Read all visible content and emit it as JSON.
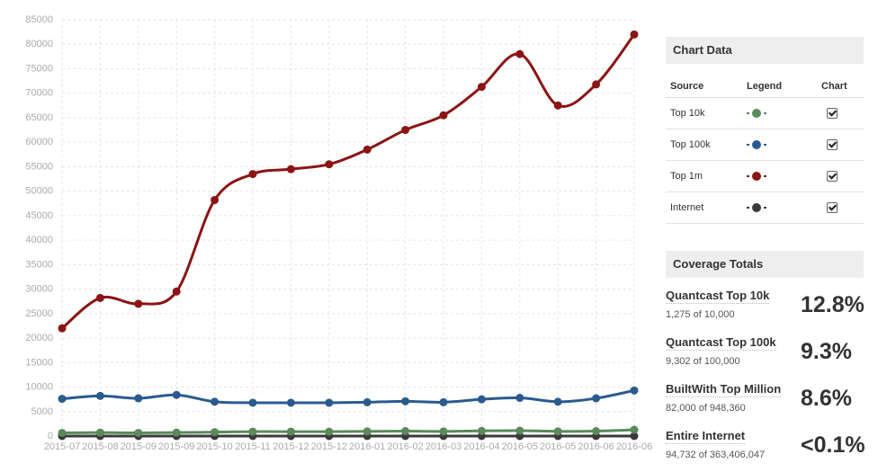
{
  "chart_data": {
    "type": "line",
    "title": "",
    "xlabel": "",
    "ylabel": "",
    "ylim": [
      0,
      85000
    ],
    "yticks": [
      0,
      5000,
      10000,
      15000,
      20000,
      25000,
      30000,
      35000,
      40000,
      45000,
      50000,
      55000,
      60000,
      65000,
      70000,
      75000,
      80000,
      85000
    ],
    "x_tick_labels": [
      "2015-07",
      "2015-08",
      "2015-09",
      "2015-09",
      "2015-10",
      "2015-11",
      "2015-12",
      "2015-12",
      "2016-01",
      "2016-02",
      "2016-03",
      "2016-04",
      "2016-05",
      "2016-05",
      "2016-06",
      "2016-06"
    ],
    "grid": true,
    "legend": "none",
    "series": [
      {
        "name": "Top 10k",
        "color": "#5a8a5a",
        "values": [
          650,
          700,
          650,
          700,
          800,
          900,
          900,
          900,
          950,
          1000,
          950,
          1050,
          1100,
          950,
          1000,
          1275
        ]
      },
      {
        "name": "Top 100k",
        "color": "#2a5b8f",
        "values": [
          7600,
          8200,
          7700,
          8400,
          7000,
          6800,
          6800,
          6800,
          6900,
          7100,
          6900,
          7500,
          7800,
          7000,
          7700,
          9302
        ]
      },
      {
        "name": "Top 1m",
        "color": "#8b1414",
        "values": [
          22000,
          28200,
          27000,
          29500,
          48200,
          53500,
          54500,
          55500,
          58500,
          62500,
          65500,
          71300,
          78000,
          67500,
          71800,
          82000
        ]
      },
      {
        "name": "Internet",
        "color": "#3a3a3a",
        "values": [
          0,
          0,
          0,
          0,
          0,
          0,
          0,
          0,
          0,
          0,
          0,
          0,
          0,
          0,
          0,
          0
        ]
      }
    ]
  },
  "chart_panel": {
    "title": "Chart Data",
    "columns": {
      "source": "Source",
      "legend": "Legend",
      "chart": "Chart"
    },
    "rows": [
      {
        "source": "Top 10k",
        "color": "#5a8a5a",
        "checked": true
      },
      {
        "source": "Top 100k",
        "color": "#2a5b8f",
        "checked": true
      },
      {
        "source": "Top 1m",
        "color": "#8b1414",
        "checked": true
      },
      {
        "source": "Internet",
        "color": "#3a3a3a",
        "checked": true
      }
    ]
  },
  "coverage": {
    "title": "Coverage Totals",
    "items": [
      {
        "name": "Quantcast Top 10k",
        "detail": "1,275 of 10,000",
        "percent": "12.8%"
      },
      {
        "name": "Quantcast Top 100k",
        "detail": "9,302 of 100,000",
        "percent": "9.3%"
      },
      {
        "name": "BuiltWith Top Million",
        "detail": "82,000 of 948,360",
        "percent": "8.6%"
      },
      {
        "name": "Entire Internet",
        "detail": "94,732 of 363,406,047",
        "percent": "<0.1%"
      }
    ]
  }
}
